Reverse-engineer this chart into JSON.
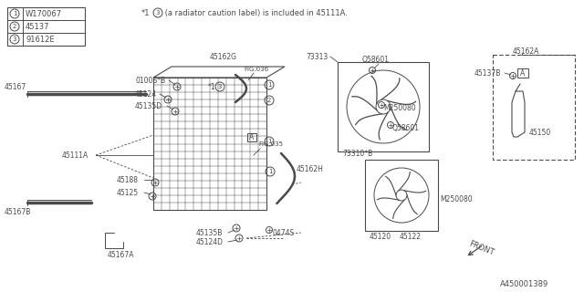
{
  "bg_color": "#ffffff",
  "line_color": "#4a4a4a",
  "legend_items": [
    {
      "num": "1",
      "code": "W170067"
    },
    {
      "num": "2",
      "code": "45137"
    },
    {
      "num": "3",
      "code": "91612E"
    }
  ],
  "diagram_title": "A450001389",
  "note_text": " (a radiator caution label) is included in 45111A.",
  "note_star": "*1",
  "front_text": "FRONT"
}
